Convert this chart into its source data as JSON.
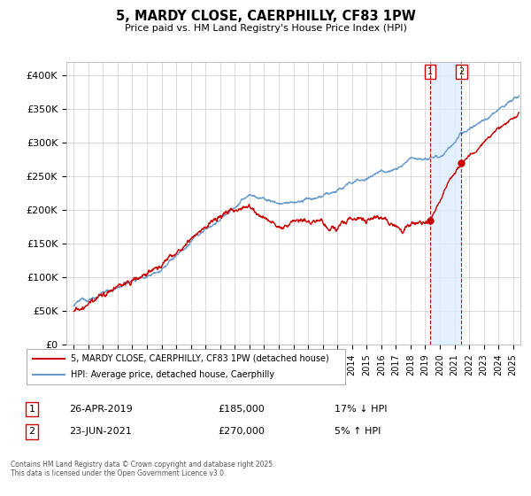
{
  "title": "5, MARDY CLOSE, CAERPHILLY, CF83 1PW",
  "subtitle": "Price paid vs. HM Land Registry's House Price Index (HPI)",
  "red_label": "5, MARDY CLOSE, CAERPHILLY, CF83 1PW (detached house)",
  "blue_label": "HPI: Average price, detached house, Caerphilly",
  "footer": "Contains HM Land Registry data © Crown copyright and database right 2025.\nThis data is licensed under the Open Government Licence v3.0.",
  "annotation1_date": "26-APR-2019",
  "annotation1_price": "£185,000",
  "annotation1_hpi": "17% ↓ HPI",
  "annotation2_date": "23-JUN-2021",
  "annotation2_price": "£270,000",
  "annotation2_hpi": "5% ↑ HPI",
  "vline1_x": 2019.32,
  "vline2_x": 2021.48,
  "sale1_y": 185000,
  "sale2_y": 270000,
  "yticks": [
    0,
    50000,
    100000,
    150000,
    200000,
    250000,
    300000,
    350000,
    400000
  ],
  "ytick_labels": [
    "£0",
    "£50K",
    "£100K",
    "£150K",
    "£200K",
    "£250K",
    "£300K",
    "£350K",
    "£400K"
  ],
  "xlim": [
    1994.5,
    2025.5
  ],
  "ylim": [
    0,
    420000
  ],
  "red_color": "#cc0000",
  "blue_color": "#6699cc",
  "shade_color": "#ddeeff",
  "vline_color": "#cc0000",
  "background_color": "#ffffff",
  "grid_color": "#cccccc"
}
